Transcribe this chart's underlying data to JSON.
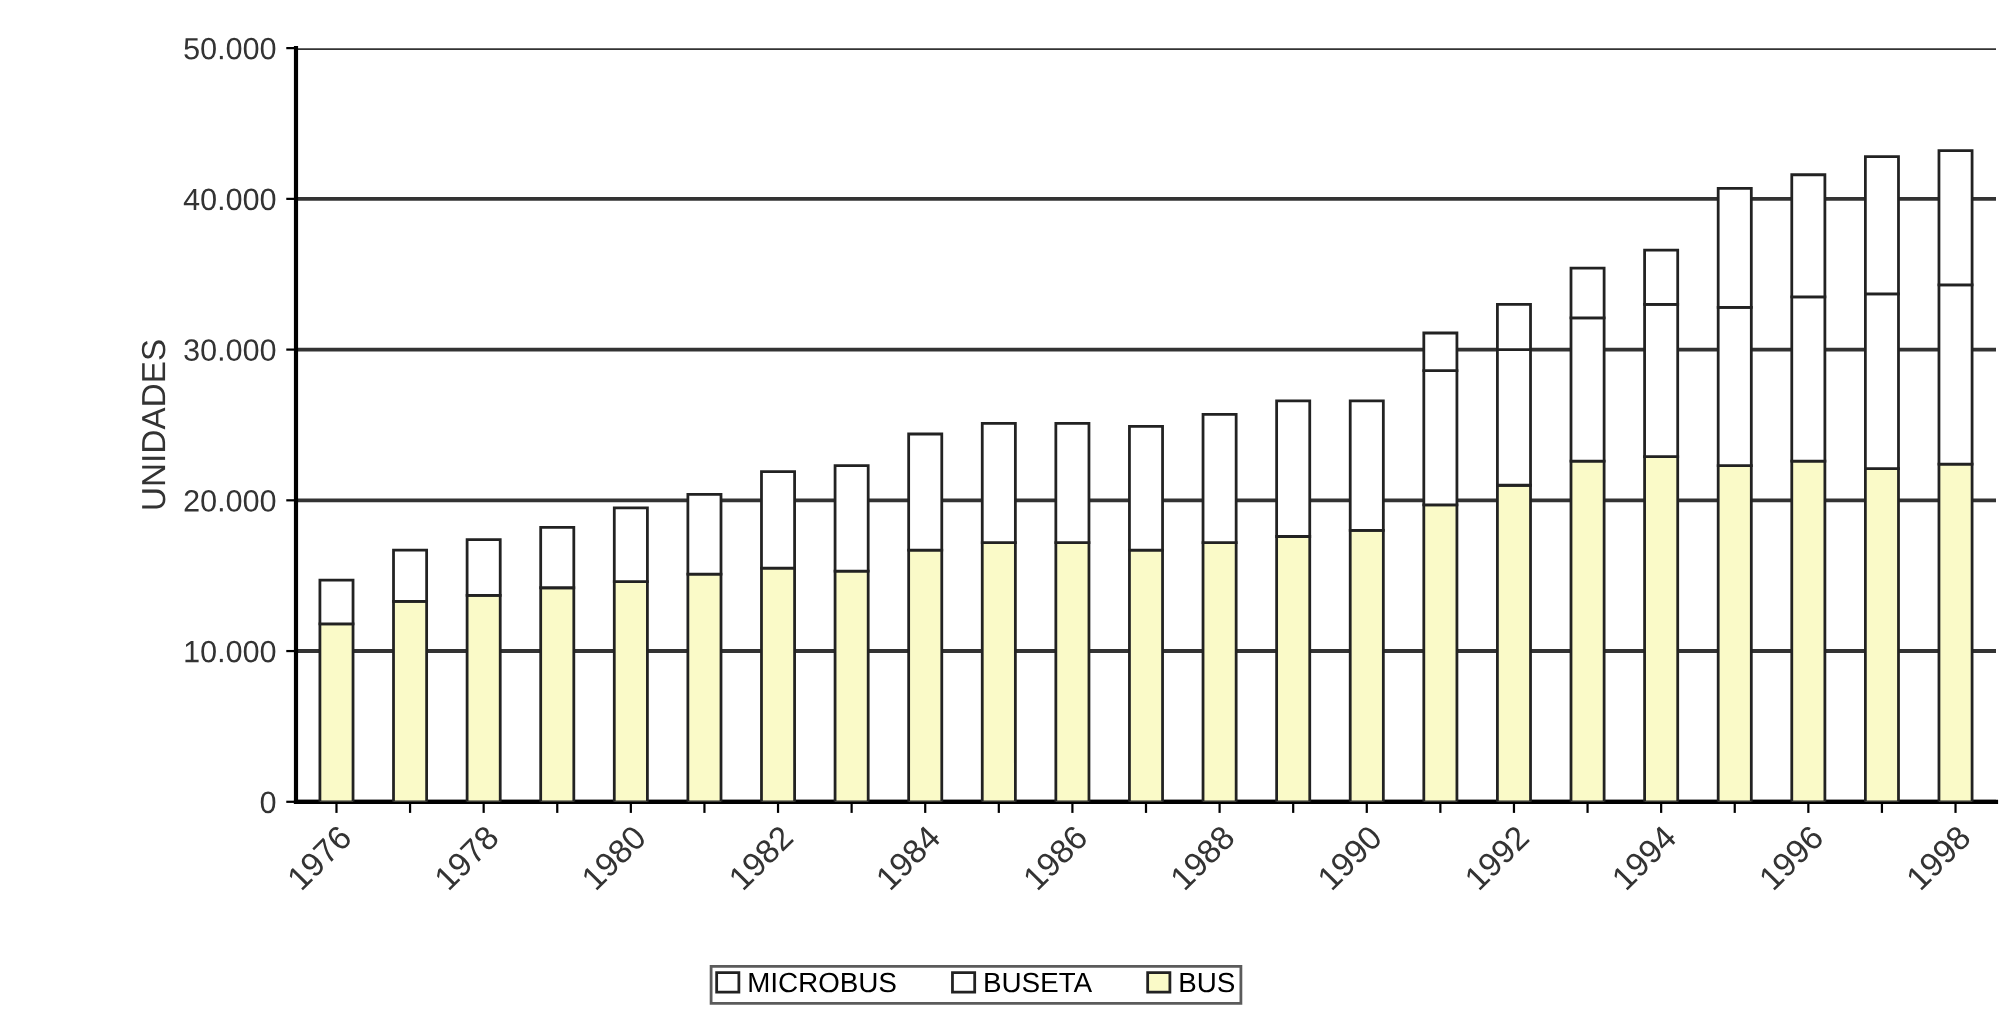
{
  "chart_data": {
    "type": "bar",
    "stacked": true,
    "ylabel": "UNIDADES",
    "categories": [
      "1976",
      null,
      "1978",
      null,
      "1980",
      null,
      "1982",
      null,
      "1984",
      null,
      "1986",
      null,
      "1988",
      null,
      "1990",
      null,
      "1992",
      null,
      "1994",
      null,
      "1996",
      null,
      "1998"
    ],
    "series": [
      {
        "name": "BUS",
        "color": "#fafac8",
        "values": [
          11800,
          13300,
          13700,
          14200,
          14600,
          15100,
          15500,
          15300,
          16700,
          17200,
          17200,
          16700,
          17200,
          17600,
          18000,
          19700,
          21000,
          22600,
          22900,
          22300,
          22600,
          22100,
          22400
        ]
      },
      {
        "name": "BUSETA",
        "color": "#ffffff",
        "values": [
          2900,
          3400,
          3700,
          4000,
          4900,
          5300,
          6400,
          7000,
          7700,
          7900,
          7900,
          8200,
          8500,
          9000,
          8600,
          8900,
          9000,
          9500,
          10100,
          10500,
          10900,
          11600,
          11900
        ]
      },
      {
        "name": "MICROBUS",
        "color": "#ffffff",
        "values": [
          null,
          null,
          null,
          null,
          null,
          null,
          null,
          null,
          null,
          null,
          null,
          null,
          null,
          null,
          null,
          2500,
          3000,
          3300,
          3600,
          7900,
          8100,
          9100,
          8900
        ]
      }
    ],
    "ylim": [
      0,
      50000
    ],
    "yticks": [
      0,
      {
        "value": 10000,
        "label": "10.000"
      },
      {
        "value": 20000,
        "label": "20.000"
      },
      {
        "value": 30000,
        "label": "30.000"
      },
      {
        "value": 40000,
        "label": "40.000"
      },
      {
        "value": 50000,
        "label": "50.000"
      }
    ],
    "grid": "y",
    "legend": "bottom"
  }
}
